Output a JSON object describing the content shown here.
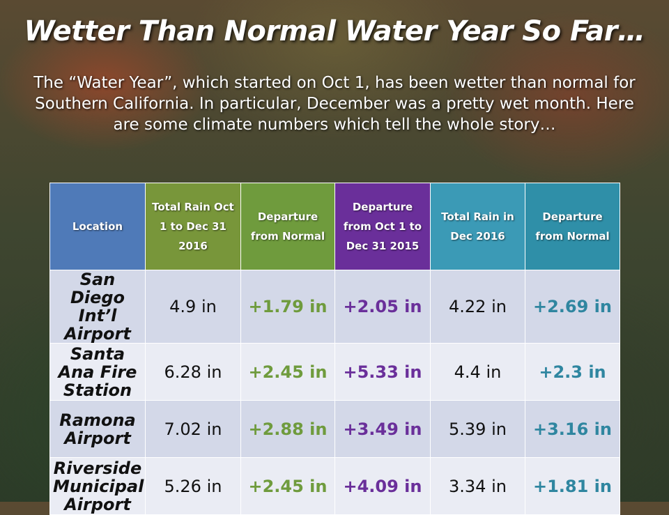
{
  "title": "Wetter Than Normal Water Year So Far…",
  "intro": "The “Water Year”, which started on Oct 1, has been wetter than normal for Southern California. In particular, December was a pretty wet month. Here are some climate numbers which tell the whole story…",
  "table": {
    "headers": {
      "location": "Location",
      "total_rain": "Total Rain Oct 1 to Dec 31 2016",
      "departure": "Departure from Normal",
      "departure_2015": "Departure from Oct 1 to Dec 31 2015",
      "dec_rain": "Total Rain in Dec 2016",
      "dec_departure": "Departure from Normal"
    },
    "rows": [
      {
        "location": "San Diego Int’l Airport",
        "total_rain": "4.9 in",
        "departure": "+1.79 in",
        "departure_2015": "+2.05 in",
        "dec_rain": "4.22 in",
        "dec_departure": "+2.69 in"
      },
      {
        "location": "Santa Ana Fire Station",
        "total_rain": "6.28 in",
        "departure": "+2.45 in",
        "departure_2015": "+5.33 in",
        "dec_rain": "4.4 in",
        "dec_departure": "+2.3 in"
      },
      {
        "location": "Ramona Airport",
        "total_rain": "7.02 in",
        "departure": "+2.88 in",
        "departure_2015": "+3.49 in",
        "dec_rain": "5.39 in",
        "dec_departure": "+3.16 in"
      },
      {
        "location": "Riverside Municipal Airport",
        "total_rain": "5.26 in",
        "departure": "+2.45 in",
        "departure_2015": "+4.09 in",
        "dec_rain": "3.34 in",
        "dec_departure": "+1.81 in"
      }
    ]
  }
}
